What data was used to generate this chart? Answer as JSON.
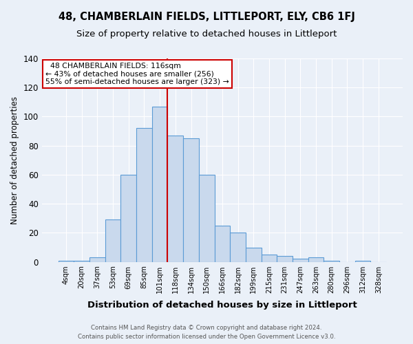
{
  "title": "48, CHAMBERLAIN FIELDS, LITTLEPORT, ELY, CB6 1FJ",
  "subtitle": "Size of property relative to detached houses in Littleport",
  "xlabel": "Distribution of detached houses by size in Littleport",
  "ylabel": "Number of detached properties",
  "footer1": "Contains HM Land Registry data © Crown copyright and database right 2024.",
  "footer2": "Contains public sector information licensed under the Open Government Licence v3.0.",
  "annotation_line1": "  48 CHAMBERLAIN FIELDS: 116sqm  ",
  "annotation_line2": "← 43% of detached houses are smaller (256)",
  "annotation_line3": "55% of semi-detached houses are larger (323) →",
  "bar_labels": [
    "4sqm",
    "20sqm",
    "37sqm",
    "53sqm",
    "69sqm",
    "85sqm",
    "101sqm",
    "118sqm",
    "134sqm",
    "150sqm",
    "166sqm",
    "182sqm",
    "199sqm",
    "215sqm",
    "231sqm",
    "247sqm",
    "263sqm",
    "280sqm",
    "296sqm",
    "312sqm",
    "328sqm"
  ],
  "bar_values": [
    1,
    1,
    3,
    29,
    60,
    92,
    107,
    87,
    85,
    60,
    25,
    20,
    10,
    5,
    4,
    2,
    3,
    1,
    0,
    1,
    0
  ],
  "bar_color": "#c9d9ed",
  "bar_edge_color": "#5b9bd5",
  "vline_x": 6.5,
  "vline_color": "#cc0000",
  "background_color": "#eaf0f8",
  "grid_color": "#ffffff",
  "ylim": [
    0,
    140
  ],
  "yticks": [
    0,
    20,
    40,
    60,
    80,
    100,
    120,
    140
  ],
  "annotation_box_color": "#ffffff",
  "annotation_box_edge": "#cc0000",
  "fig_width": 6.0,
  "fig_height": 5.0,
  "dpi": 100
}
